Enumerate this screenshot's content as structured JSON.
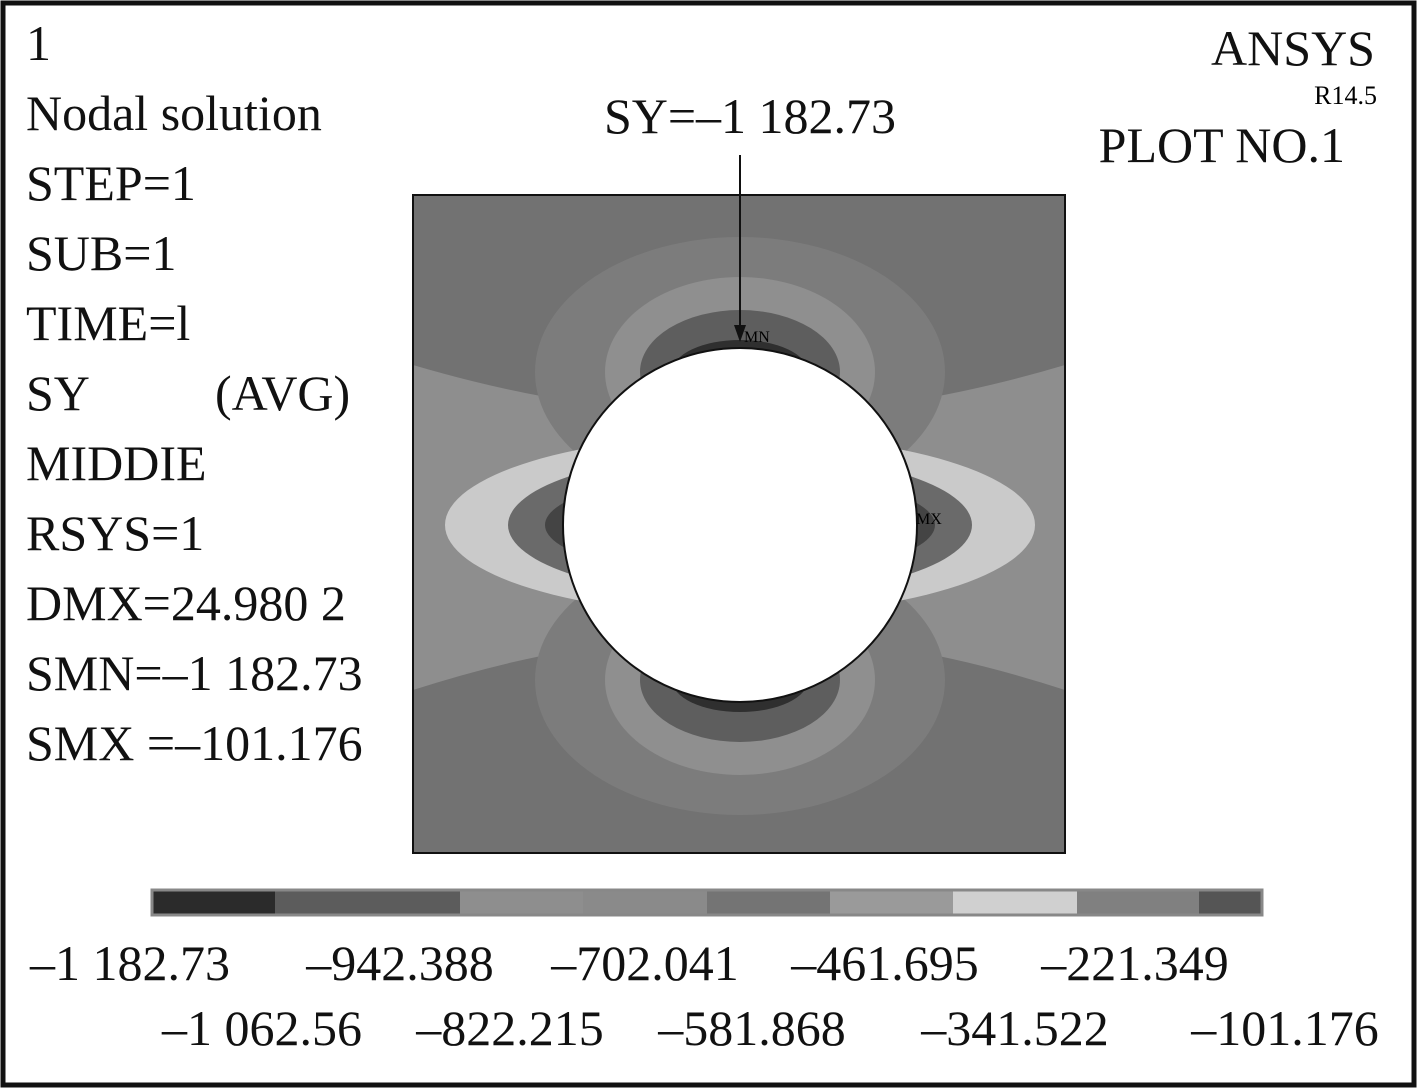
{
  "header": {
    "number": "1",
    "lines": [
      "Nodal solution",
      "STEP=1",
      "SUB=1",
      "TIME=l"
    ],
    "item": "SY",
    "avg": "(AVG)",
    "lines2": [
      "MIDDIE",
      "RSYS=1",
      "DMX=24.980 2",
      "SMN=–1 182.73",
      "SMX =–101.176"
    ]
  },
  "brand": {
    "name": "ANSYS",
    "version": "R14.5",
    "plot": "PLOT NO.1"
  },
  "annotation": "SY=–1 182.73",
  "markers": {
    "min": "MN",
    "max": "MX"
  },
  "legend": {
    "labels": [
      "–1 182.73",
      "–1 062.56",
      "–942.388",
      "–822.215",
      "–702.041",
      "–581.868",
      "–461.695",
      "–341.522",
      "–221.349",
      "–101.176"
    ]
  }
}
